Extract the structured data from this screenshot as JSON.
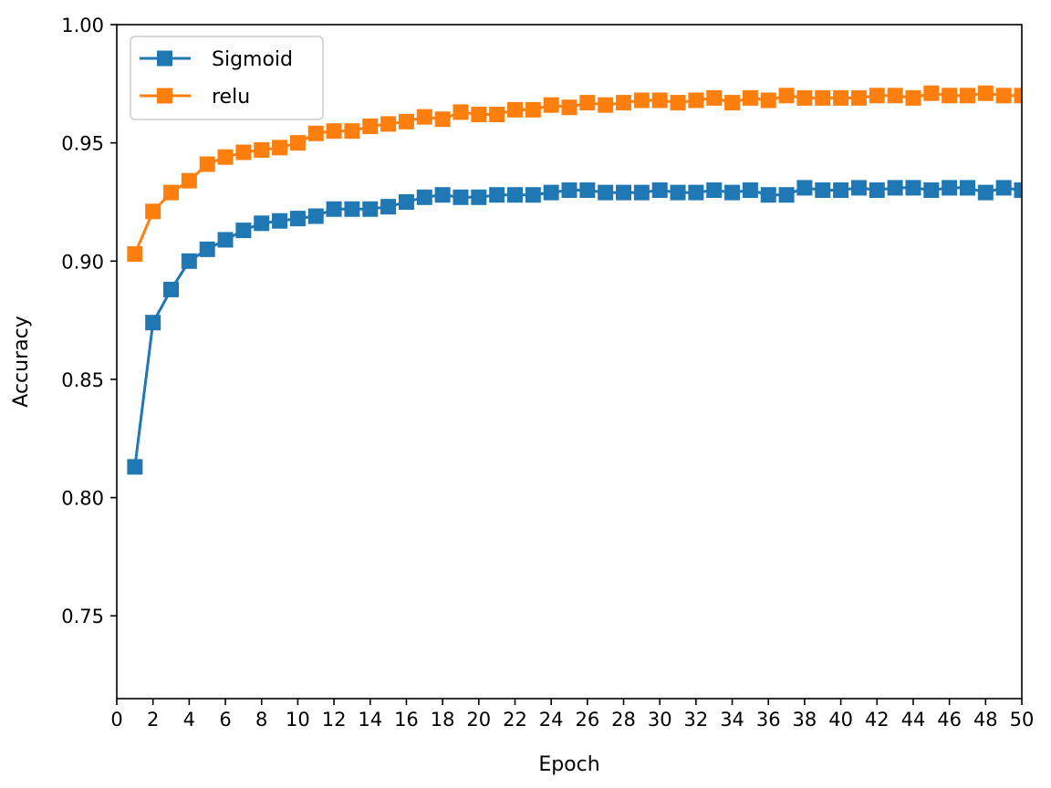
{
  "chart_data": {
    "type": "line",
    "title": "",
    "xlabel": "Epoch",
    "ylabel": "Accuracy",
    "xlim": [
      0,
      50
    ],
    "ylim": [
      0.715,
      1.0
    ],
    "xticks": [
      0,
      2,
      4,
      6,
      8,
      10,
      12,
      14,
      16,
      18,
      20,
      22,
      24,
      26,
      28,
      30,
      32,
      34,
      36,
      38,
      40,
      42,
      44,
      46,
      48,
      50
    ],
    "yticks": [
      0.75,
      0.8,
      0.85,
      0.9,
      0.95,
      1.0
    ],
    "ytick_labels": [
      "0.75",
      "0.80",
      "0.85",
      "0.90",
      "0.95",
      "1.00"
    ],
    "grid": false,
    "legend_position": "upper-left",
    "marker": "square",
    "x": [
      1,
      2,
      3,
      4,
      5,
      6,
      7,
      8,
      9,
      10,
      11,
      12,
      13,
      14,
      15,
      16,
      17,
      18,
      19,
      20,
      21,
      22,
      23,
      24,
      25,
      26,
      27,
      28,
      29,
      30,
      31,
      32,
      33,
      34,
      35,
      36,
      37,
      38,
      39,
      40,
      41,
      42,
      43,
      44,
      45,
      46,
      47,
      48,
      49,
      50
    ],
    "series": [
      {
        "name": "Sigmoid",
        "color": "#1f77b4",
        "values": [
          0.813,
          0.874,
          0.888,
          0.9,
          0.905,
          0.909,
          0.913,
          0.916,
          0.917,
          0.918,
          0.919,
          0.922,
          0.922,
          0.922,
          0.923,
          0.925,
          0.927,
          0.928,
          0.927,
          0.927,
          0.928,
          0.928,
          0.928,
          0.929,
          0.93,
          0.93,
          0.929,
          0.929,
          0.929,
          0.93,
          0.929,
          0.929,
          0.93,
          0.929,
          0.93,
          0.928,
          0.928,
          0.931,
          0.93,
          0.93,
          0.931,
          0.93,
          0.931,
          0.931,
          0.93,
          0.931,
          0.931,
          0.929,
          0.931,
          0.93
        ]
      },
      {
        "name": "relu",
        "color": "#ff7f0e",
        "values": [
          0.903,
          0.921,
          0.929,
          0.934,
          0.941,
          0.944,
          0.946,
          0.947,
          0.948,
          0.95,
          0.954,
          0.955,
          0.955,
          0.957,
          0.958,
          0.959,
          0.961,
          0.96,
          0.963,
          0.962,
          0.962,
          0.964,
          0.964,
          0.966,
          0.965,
          0.967,
          0.966,
          0.967,
          0.968,
          0.968,
          0.967,
          0.968,
          0.969,
          0.967,
          0.969,
          0.968,
          0.97,
          0.969,
          0.969,
          0.969,
          0.969,
          0.97,
          0.97,
          0.969,
          0.971,
          0.97,
          0.97,
          0.971,
          0.97,
          0.97
        ]
      }
    ]
  }
}
